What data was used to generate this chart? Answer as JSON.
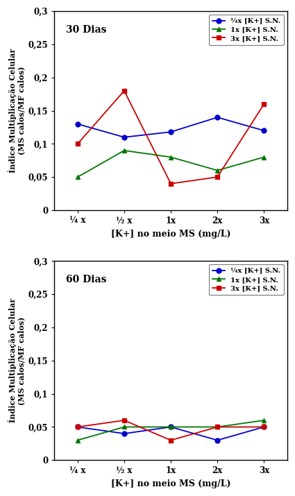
{
  "x_labels": [
    "¼ x",
    "½ x",
    "1x",
    "2x",
    "3x"
  ],
  "x_positions": [
    0,
    1,
    2,
    3,
    4
  ],
  "top": {
    "title": "30 Dias",
    "blue_label": "¼x [K+] S.N.",
    "green_label": "1x [K+] S.N.",
    "red_label": "3x [K+] S.N.",
    "blue_y": [
      0.13,
      0.11,
      0.118,
      0.14,
      0.12
    ],
    "green_y": [
      0.05,
      0.09,
      0.08,
      0.06,
      0.08
    ],
    "red_y": [
      0.1,
      0.18,
      0.04,
      0.05,
      0.16
    ]
  },
  "bottom": {
    "title": "60 Dias",
    "blue_label": "¼x [K+] S.N.",
    "green_label": "1x [K+] S.N.",
    "red_label": "3x [K+] S.N.",
    "blue_y": [
      0.05,
      0.04,
      0.05,
      0.03,
      0.05
    ],
    "green_y": [
      0.03,
      0.05,
      0.05,
      0.05,
      0.06
    ],
    "red_y": [
      0.05,
      0.06,
      0.03,
      0.05,
      0.05
    ]
  },
  "ylabel_line1": "Índice Multiplicação Celular",
  "ylabel_line2": "(MS calos/MF calos)",
  "xlabel": "[K+] no meio MS (mg/L)",
  "ylim": [
    0,
    0.3
  ],
  "yticks": [
    0,
    0.05,
    0.1,
    0.15,
    0.2,
    0.25,
    0.3
  ],
  "ytick_labels": [
    "0",
    "0,05",
    "0,1",
    "0,15",
    "0,2",
    "0,25",
    "0,3"
  ],
  "blue_color": "#0000CC",
  "green_color": "#007700",
  "red_color": "#CC0000",
  "bg_color": "#FFFFFF",
  "plot_bg": "#FFFFFF"
}
